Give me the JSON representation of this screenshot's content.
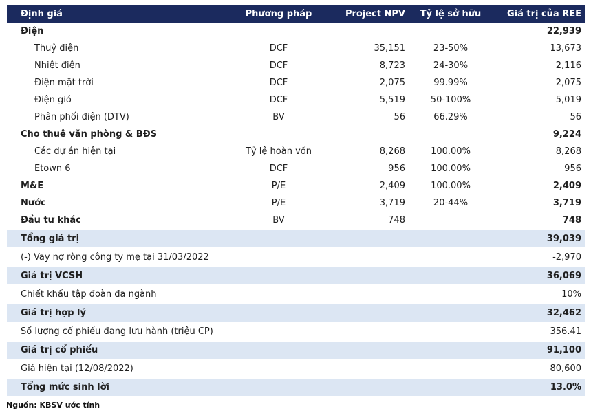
{
  "colors": {
    "header_bg": "#1b2a5e",
    "header_text": "#ffffff",
    "highlight_bg": "#dce6f3",
    "body_text": "#1f1f1f",
    "bottom_line": "#14224f"
  },
  "table": {
    "columns": [
      "Định giá",
      "Phương pháp",
      "Project NPV",
      "Tỷ lệ sở hữu",
      "Giá trị của REE"
    ],
    "rows": [
      {
        "label": "Điện",
        "method": "",
        "project_npv": "",
        "ownership": "",
        "ree_value": "22,939",
        "style": "category"
      },
      {
        "label": "Thuỷ điện",
        "method": "DCF",
        "project_npv": "35,151",
        "ownership": "23-50%",
        "ree_value": "13,673",
        "style": "sub"
      },
      {
        "label": "Nhiệt điện",
        "method": "DCF",
        "project_npv": "8,723",
        "ownership": "24-30%",
        "ree_value": "2,116",
        "style": "sub"
      },
      {
        "label": "Điện mặt trời",
        "method": "DCF",
        "project_npv": "2,075",
        "ownership": "99.99%",
        "ree_value": "2,075",
        "style": "sub"
      },
      {
        "label": "Điện gió",
        "method": "DCF",
        "project_npv": "5,519",
        "ownership": "50-100%",
        "ree_value": "5,019",
        "style": "sub"
      },
      {
        "label": "Phân phối điện (DTV)",
        "method": "BV",
        "project_npv": "56",
        "ownership": "66.29%",
        "ree_value": "56",
        "style": "sub"
      },
      {
        "label": "Cho thuê văn phòng & BĐS",
        "method": "",
        "project_npv": "",
        "ownership": "",
        "ree_value": "9,224",
        "style": "category"
      },
      {
        "label": "Các dự án hiện tại",
        "method": "Tỷ lệ hoàn vốn",
        "project_npv": "8,268",
        "ownership": "100.00%",
        "ree_value": "8,268",
        "style": "sub"
      },
      {
        "label": "Etown 6",
        "method": "DCF",
        "project_npv": "956",
        "ownership": "100.00%",
        "ree_value": "956",
        "style": "sub"
      },
      {
        "label": "M&E",
        "method": "P/E",
        "project_npv": "2,409",
        "ownership": "100.00%",
        "ree_value": "2,409",
        "style": "category"
      },
      {
        "label": "Nước",
        "method": "P/E",
        "project_npv": "3,719",
        "ownership": "20-44%",
        "ree_value": "3,719",
        "style": "category"
      },
      {
        "label": "Đầu tư khác",
        "method": "BV",
        "project_npv": "748",
        "ownership": "",
        "ree_value": "748",
        "style": "category"
      },
      {
        "label": "Tổng giá trị",
        "method": "",
        "project_npv": "",
        "ownership": "",
        "ree_value": "39,039",
        "style": "highlight"
      },
      {
        "label": "(-) Vay nợ ròng công ty mẹ tại 31/03/2022",
        "method": "",
        "project_npv": "",
        "ownership": "",
        "ree_value": "-2,970",
        "style": "plain"
      },
      {
        "label": "Giá trị VCSH",
        "method": "",
        "project_npv": "",
        "ownership": "",
        "ree_value": "36,069",
        "style": "highlight"
      },
      {
        "label": "Chiết khấu tập đoàn đa ngành",
        "method": "",
        "project_npv": "",
        "ownership": "",
        "ree_value": "10%",
        "style": "plain"
      },
      {
        "label": "Giá trị hợp lý",
        "method": "",
        "project_npv": "",
        "ownership": "",
        "ree_value": "32,462",
        "style": "highlight"
      },
      {
        "label": "Số lượng cổ phiếu đang lưu hành (triệu CP)",
        "method": "",
        "project_npv": "",
        "ownership": "",
        "ree_value": "356.41",
        "style": "plain"
      },
      {
        "label": "Giá trị cổ phiếu",
        "method": "",
        "project_npv": "",
        "ownership": "",
        "ree_value": "91,100",
        "style": "highlight"
      },
      {
        "label": "Giá hiện tại (12/08/2022)",
        "method": "",
        "project_npv": "",
        "ownership": "",
        "ree_value": "80,600",
        "style": "plain"
      },
      {
        "label": "Tổng mức sinh lời",
        "method": "",
        "project_npv": "",
        "ownership": "",
        "ree_value": "13.0%",
        "style": "highlight"
      }
    ]
  },
  "footer": {
    "source_note": "Nguồn: KBSV ước tính"
  }
}
